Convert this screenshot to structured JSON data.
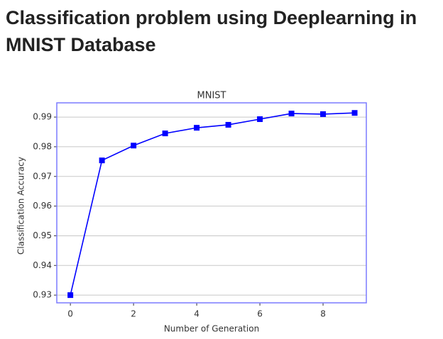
{
  "header": {
    "title": "Classification problem using Deeplearning in MNIST Database"
  },
  "chart_data": {
    "type": "line",
    "title": "MNIST",
    "x_label": "Number of Generation",
    "y_label": "Classification Accuracy",
    "x": [
      0,
      1,
      2,
      3,
      4,
      5,
      6,
      7,
      8,
      9
    ],
    "series": [
      {
        "name": "MNIST",
        "color": "#0000ff",
        "values": [
          0.93,
          0.9754,
          0.9804,
          0.9845,
          0.9864,
          0.9874,
          0.9893,
          0.9912,
          0.991,
          0.9914
        ]
      }
    ],
    "xlim": [
      -0.43,
      9.37
    ],
    "ylim": [
      0.9274,
      0.9948
    ],
    "xticks": [
      0,
      2,
      4,
      6,
      8
    ],
    "yticks": [
      0.93,
      0.94,
      0.95,
      0.96,
      0.97,
      0.98,
      0.99
    ],
    "grid": true,
    "frame_color": "#7b7bff"
  }
}
